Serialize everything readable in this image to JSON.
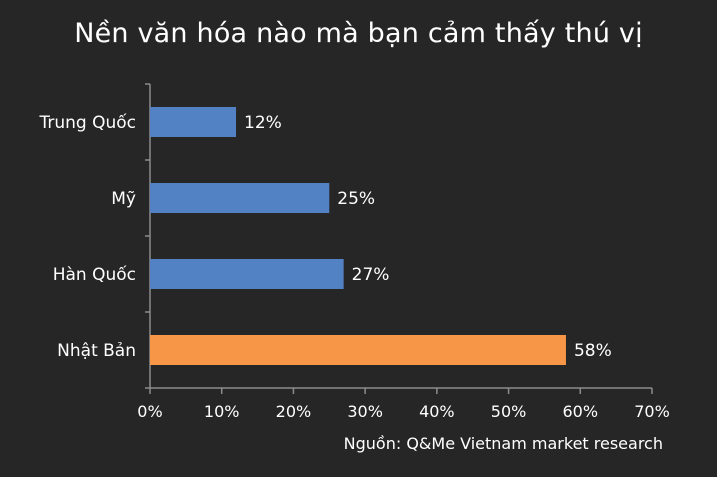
{
  "chart_data": {
    "type": "bar",
    "orientation": "horizontal",
    "title": "Nền văn hóa nào mà bạn cảm thấy thú vị",
    "categories": [
      "Trung Quốc",
      "Mỹ",
      "Hàn Quốc",
      "Nhật Bản"
    ],
    "values": [
      12,
      25,
      27,
      58
    ],
    "data_labels": [
      "12%",
      "25%",
      "27%",
      "58%"
    ],
    "xlim": [
      0,
      70
    ],
    "x_ticks": [
      0,
      10,
      20,
      30,
      40,
      50,
      60,
      70
    ],
    "x_tick_labels": [
      "0%",
      "10%",
      "20%",
      "30%",
      "40%",
      "50%",
      "60%",
      "70%"
    ],
    "grid": false,
    "legend": "none",
    "colors": {
      "default_bar": "#5282c4",
      "highlight_bar": "#f79646",
      "background": "#262626",
      "axis": "#8c8c8c",
      "text": "#ffffff"
    },
    "highlight_category": "Nhật Bản",
    "source": "Nguồn: Q&Me Vietnam market research"
  }
}
